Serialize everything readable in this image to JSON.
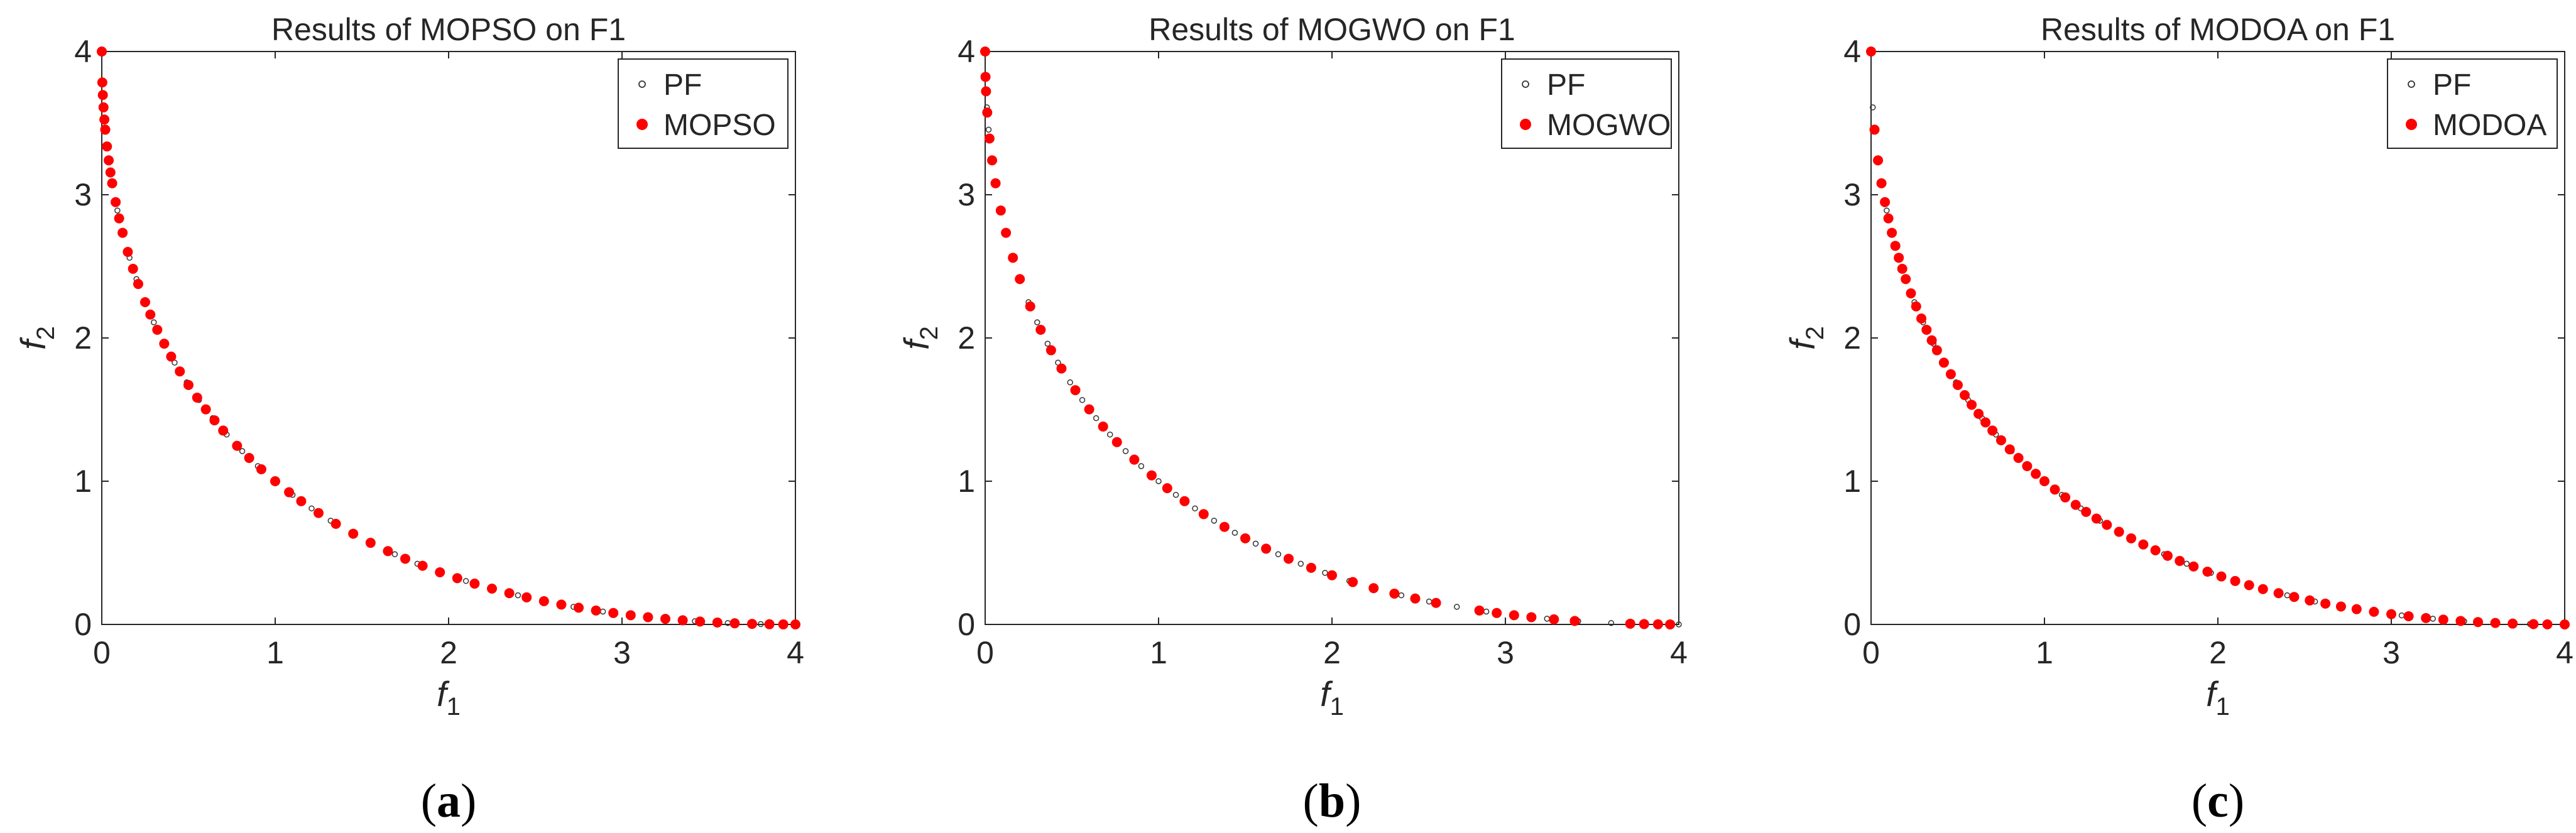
{
  "chart_data": [
    {
      "type": "scatter",
      "title": "Results of MOPSO on F1",
      "xlabel": "f",
      "xlabel_sub": "1",
      "ylabel": "f",
      "ylabel_sub": "2",
      "xlim": [
        0,
        4
      ],
      "ylim": [
        0,
        4
      ],
      "xticks": [
        0,
        1,
        2,
        3,
        4
      ],
      "yticks": [
        0,
        1,
        2,
        3,
        4
      ],
      "legend": {
        "position": "top-right",
        "entries": [
          "PF",
          "MOPSO"
        ]
      },
      "front": "f2 = (2 - sqrt(f1))^2",
      "series": [
        {
          "name": "PF",
          "marker": "small-hollow-circle",
          "color": "#333333",
          "x": [
            0,
            0.01,
            0.02,
            0.04,
            0.06,
            0.09,
            0.12,
            0.16,
            0.2,
            0.25,
            0.3,
            0.36,
            0.42,
            0.49,
            0.56,
            0.64,
            0.72,
            0.81,
            0.9,
            1.0,
            1.1,
            1.21,
            1.32,
            1.44,
            1.56,
            1.69,
            1.82,
            1.96,
            2.1,
            2.25,
            2.4,
            2.56,
            2.72,
            2.89,
            3.06,
            3.24,
            3.42,
            3.61,
            3.8,
            4.0
          ]
        },
        {
          "name": "MOPSO",
          "marker": "filled-circle",
          "color": "#ff0000",
          "x": [
            0,
            0.003,
            0.006,
            0.01,
            0.015,
            0.02,
            0.03,
            0.04,
            0.05,
            0.06,
            0.08,
            0.1,
            0.12,
            0.15,
            0.18,
            0.21,
            0.25,
            0.28,
            0.32,
            0.36,
            0.4,
            0.45,
            0.5,
            0.55,
            0.6,
            0.65,
            0.7,
            0.78,
            0.85,
            0.92,
            1.0,
            1.08,
            1.15,
            1.25,
            1.35,
            1.45,
            1.55,
            1.65,
            1.75,
            1.85,
            1.95,
            2.05,
            2.15,
            2.25,
            2.35,
            2.45,
            2.55,
            2.65,
            2.75,
            2.85,
            2.95,
            3.05,
            3.15,
            3.25,
            3.35,
            3.45,
            3.55,
            3.65,
            3.75,
            3.85,
            3.93,
            4.0
          ]
        }
      ],
      "caption": "(a)"
    },
    {
      "type": "scatter",
      "title": "Results of MOGWO on F1",
      "xlabel": "f",
      "xlabel_sub": "1",
      "ylabel": "f",
      "ylabel_sub": "2",
      "xlim": [
        0,
        4
      ],
      "ylim": [
        0,
        4
      ],
      "xticks": [
        0,
        1,
        2,
        3,
        4
      ],
      "yticks": [
        0,
        1,
        2,
        3,
        4
      ],
      "legend": {
        "position": "top-right",
        "entries": [
          "PF",
          "MOGWO"
        ]
      },
      "front": "f2 = (2 - sqrt(f1))^2",
      "series": [
        {
          "name": "PF",
          "marker": "small-hollow-circle",
          "color": "#333333",
          "x": [
            0,
            0.01,
            0.02,
            0.04,
            0.06,
            0.09,
            0.12,
            0.16,
            0.2,
            0.25,
            0.3,
            0.36,
            0.42,
            0.49,
            0.56,
            0.64,
            0.72,
            0.81,
            0.9,
            1.0,
            1.1,
            1.21,
            1.32,
            1.44,
            1.56,
            1.69,
            1.82,
            1.96,
            2.1,
            2.25,
            2.4,
            2.56,
            2.72,
            2.89,
            3.06,
            3.24,
            3.42,
            3.61,
            3.8,
            4.0
          ]
        },
        {
          "name": "MOGWO",
          "marker": "filled-circle",
          "color": "#ff0000",
          "x": [
            0,
            0.002,
            0.005,
            0.012,
            0.025,
            0.04,
            0.06,
            0.09,
            0.12,
            0.16,
            0.2,
            0.26,
            0.32,
            0.38,
            0.44,
            0.52,
            0.6,
            0.68,
            0.76,
            0.86,
            0.96,
            1.05,
            1.15,
            1.26,
            1.38,
            1.5,
            1.62,
            1.75,
            1.88,
            2.0,
            2.12,
            2.24,
            2.36,
            2.48,
            2.6,
            2.85,
            2.95,
            3.05,
            3.15,
            3.28,
            3.4,
            3.72,
            3.8,
            3.88,
            3.95
          ]
        }
      ],
      "caption": "(b)"
    },
    {
      "type": "scatter",
      "title": "Results of MODOA on F1",
      "xlabel": "f",
      "xlabel_sub": "1",
      "ylabel": "f",
      "ylabel_sub": "2",
      "xlim": [
        0,
        4
      ],
      "ylim": [
        0,
        4
      ],
      "xticks": [
        0,
        1,
        2,
        3,
        4
      ],
      "yticks": [
        0,
        1,
        2,
        3,
        4
      ],
      "legend": {
        "position": "top-right",
        "entries": [
          "PF",
          "MODOA"
        ]
      },
      "front": "f2 = (2 - sqrt(f1))^2",
      "series": [
        {
          "name": "PF",
          "marker": "small-hollow-circle",
          "color": "#333333",
          "x": [
            0,
            0.01,
            0.02,
            0.04,
            0.06,
            0.09,
            0.12,
            0.16,
            0.2,
            0.25,
            0.3,
            0.36,
            0.42,
            0.49,
            0.56,
            0.64,
            0.72,
            0.81,
            0.9,
            1.0,
            1.1,
            1.21,
            1.32,
            1.44,
            1.56,
            1.69,
            1.82,
            1.96,
            2.1,
            2.25,
            2.4,
            2.56,
            2.72,
            2.89,
            3.06,
            3.24,
            3.42,
            3.61,
            3.8,
            4.0
          ]
        },
        {
          "name": "MODOA",
          "marker": "filled-circle",
          "color": "#ff0000",
          "x": [
            0,
            0.02,
            0.04,
            0.06,
            0.08,
            0.1,
            0.12,
            0.14,
            0.16,
            0.18,
            0.2,
            0.23,
            0.26,
            0.29,
            0.32,
            0.35,
            0.38,
            0.42,
            0.46,
            0.5,
            0.54,
            0.58,
            0.62,
            0.66,
            0.7,
            0.75,
            0.8,
            0.85,
            0.9,
            0.95,
            1.0,
            1.06,
            1.12,
            1.18,
            1.24,
            1.3,
            1.36,
            1.43,
            1.5,
            1.57,
            1.64,
            1.71,
            1.78,
            1.86,
            1.94,
            2.02,
            2.1,
            2.18,
            2.26,
            2.35,
            2.44,
            2.53,
            2.62,
            2.71,
            2.8,
            2.9,
            3.0,
            3.1,
            3.2,
            3.3,
            3.4,
            3.5,
            3.6,
            3.7,
            3.82,
            3.9,
            4.0
          ]
        }
      ],
      "caption": "(c)"
    }
  ]
}
